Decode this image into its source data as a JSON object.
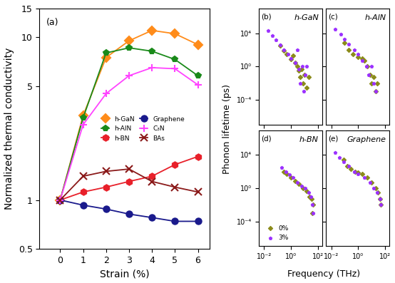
{
  "chart_data": [
    {
      "type": "line",
      "panel_label": "(a)",
      "xlabel": "Strain (%)",
      "ylabel": "Normalized thermal conductivity",
      "log": "y",
      "legend": "center",
      "xlim": [
        -0.9,
        6.5
      ],
      "xticks": [
        0,
        1,
        2,
        3,
        4,
        5,
        6
      ],
      "ylim": [
        0.5,
        15
      ],
      "yticks": [
        0.5,
        1,
        5,
        10,
        15
      ],
      "x": [
        0,
        1,
        2,
        3,
        4,
        5,
        6
      ],
      "series": [
        {
          "name": "h-GaN",
          "color": "#ff8c1a",
          "marker": "diamond",
          "values": [
            1,
            3.3,
            7.5,
            9.5,
            11,
            10.5,
            9
          ]
        },
        {
          "name": "h-AlN",
          "color": "#1a8a1a",
          "marker": "pentagon",
          "values": [
            1,
            3.2,
            8,
            8.6,
            8.2,
            7.3,
            5.8
          ]
        },
        {
          "name": "h-BN",
          "color": "#e8202a",
          "marker": "hexagon",
          "values": [
            1,
            1.12,
            1.2,
            1.3,
            1.4,
            1.65,
            1.85
          ]
        },
        {
          "name": "Graphene",
          "color": "#1a1a8c",
          "marker": "circle",
          "values": [
            1,
            0.93,
            0.88,
            0.82,
            0.78,
            0.74,
            0.74
          ]
        },
        {
          "name": "C₃N",
          "color": "#ff44ff",
          "marker": "plus",
          "values": [
            1,
            2.9,
            4.5,
            5.8,
            6.5,
            6.4,
            5.1
          ]
        },
        {
          "name": "BAs",
          "color": "#8b1a1a",
          "marker": "x",
          "values": [
            1,
            1.4,
            1.5,
            1.55,
            1.3,
            1.2,
            1.12
          ]
        }
      ]
    },
    {
      "type": "scatter",
      "panel_label": "(b)",
      "annotation": "h-GaN",
      "ylabel": "Phonon lifetime (ps)",
      "log": true,
      "tick_labels": "y",
      "xlim": [
        0.004,
        200
      ],
      "xticks": [
        {
          "value": 0.01,
          "label": "10⁻²"
        },
        {
          "value": 1,
          "label": "10⁰"
        },
        {
          "value": 100,
          "label": "10²"
        }
      ],
      "ylim": [
        1e-07,
        10000000.0
      ],
      "yticks": [
        {
          "value": 0.0001,
          "label": "10⁻⁴"
        },
        {
          "value": 1,
          "label": "10⁰"
        },
        {
          "value": 10000,
          "label": "10⁴"
        }
      ],
      "series": [
        {
          "name": "0%",
          "color": "#8b8b1a",
          "marker": "diamond",
          "x": [
            0.15,
            0.3,
            0.5,
            1,
            1.5,
            2,
            3,
            4,
            5,
            6,
            8,
            10,
            15,
            20
          ],
          "values": [
            300,
            80,
            30,
            8,
            20,
            3,
            1,
            0.3,
            0.05,
            0.5,
            0.01,
            0.1,
            0.003,
            0.05
          ]
        },
        {
          "name": "3%",
          "color": "#9b30ff",
          "marker": "pentagon",
          "x": [
            0.02,
            0.04,
            0.08,
            0.15,
            0.3,
            0.6,
            1,
            2,
            3,
            4,
            5,
            7,
            9,
            12,
            15
          ],
          "values": [
            20000,
            5000,
            1500,
            400,
            100,
            30,
            10,
            3,
            100,
            0.5,
            0.01,
            1,
            0.001,
            0.1,
            1
          ]
        }
      ]
    },
    {
      "type": "scatter",
      "panel_label": "(c)",
      "annotation": "h-AlN",
      "log": true,
      "tick_labels": false,
      "xlim": [
        0.004,
        200
      ],
      "xticks": [
        {
          "value": 0.01,
          "label": "10⁻²"
        },
        {
          "value": 1,
          "label": "10⁰"
        },
        {
          "value": 100,
          "label": "10²"
        }
      ],
      "ylim": [
        1e-07,
        10000000.0
      ],
      "yticks": [
        {
          "value": 0.0001,
          "label": "10⁻⁴"
        },
        {
          "value": 1,
          "label": "10⁰"
        },
        {
          "value": 10000,
          "label": "10⁴"
        }
      ],
      "series": [
        {
          "name": "0%",
          "color": "#8b8b1a",
          "marker": "diamond",
          "x": [
            0.1,
            0.2,
            0.4,
            1,
            2,
            3,
            5,
            8,
            10,
            15,
            20,
            25
          ],
          "values": [
            800,
            100,
            30,
            15,
            10,
            5,
            1,
            0.1,
            0.01,
            0.05,
            0.001,
            0.01
          ]
        },
        {
          "name": "3%",
          "color": "#9b30ff",
          "marker": "pentagon",
          "x": [
            0.02,
            0.05,
            0.1,
            0.2,
            0.5,
            1,
            2,
            4,
            6,
            10,
            15,
            20
          ],
          "values": [
            30000,
            8000,
            2000,
            500,
            100,
            30,
            5,
            1,
            0.1,
            1,
            0.01,
            0.001
          ]
        }
      ]
    },
    {
      "type": "scatter",
      "panel_label": "(d)",
      "annotation": "h-BN",
      "xlabel": "Frequency (THz)",
      "log": true,
      "legend": "lower left",
      "xlim": [
        0.004,
        200
      ],
      "xticks": [
        {
          "value": 0.01,
          "label": "10⁻²"
        },
        {
          "value": 1,
          "label": "10⁰"
        },
        {
          "value": 100,
          "label": "10²"
        }
      ],
      "ylim": [
        1e-07,
        10000000.0
      ],
      "yticks": [
        {
          "value": 0.0001,
          "label": "10⁻⁴"
        },
        {
          "value": 1,
          "label": "10⁰"
        },
        {
          "value": 10000,
          "label": "10⁴"
        }
      ],
      "series": [
        {
          "name": "0%",
          "color": "#8b8b1a",
          "marker": "diamond",
          "x": [
            0.3,
            0.5,
            1,
            2,
            4,
            8,
            15,
            25,
            35,
            40,
            45
          ],
          "values": [
            100,
            50,
            20,
            8,
            3,
            1,
            0.5,
            0.1,
            0.05,
            0.001,
            0.01
          ]
        },
        {
          "name": "3%",
          "color": "#9b30ff",
          "marker": "pentagon",
          "x": [
            0.2,
            0.4,
            0.8,
            1.5,
            3,
            6,
            12,
            20,
            30,
            40,
            45
          ],
          "values": [
            300,
            100,
            40,
            20,
            5,
            2,
            1,
            0.3,
            0.1,
            0.01,
            0.001
          ]
        }
      ]
    },
    {
      "type": "scatter",
      "panel_label": "(e)",
      "annotation": "Graphene",
      "log": true,
      "tick_labels": "x",
      "xlim": [
        0.004,
        200
      ],
      "xticks": [
        {
          "value": 0.01,
          "label": "10⁻²"
        },
        {
          "value": 1,
          "label": "10⁰"
        },
        {
          "value": 100,
          "label": "10²"
        }
      ],
      "ylim": [
        1e-07,
        10000000.0
      ],
      "yticks": [
        {
          "value": 0.0001,
          "label": "10⁻⁴"
        },
        {
          "value": 1,
          "label": "10⁰"
        },
        {
          "value": 10000,
          "label": "10⁴"
        }
      ],
      "series": [
        {
          "name": "0%",
          "color": "#8b8b1a",
          "marker": "diamond",
          "x": [
            0.08,
            0.15,
            0.3,
            0.6,
            1,
            2,
            5,
            10,
            20,
            30,
            40,
            50
          ],
          "values": [
            3000,
            500,
            200,
            100,
            80,
            50,
            20,
            5,
            1,
            0.3,
            0.05,
            0.01
          ]
        },
        {
          "name": "3%",
          "color": "#9b30ff",
          "marker": "pentagon",
          "x": [
            0.02,
            0.04,
            0.08,
            0.2,
            0.5,
            1,
            3,
            8,
            15,
            25,
            40,
            50
          ],
          "values": [
            20000,
            5000,
            1500,
            500,
            100,
            50,
            20,
            5,
            1,
            0.3,
            0.05,
            0.01
          ]
        }
      ]
    }
  ]
}
